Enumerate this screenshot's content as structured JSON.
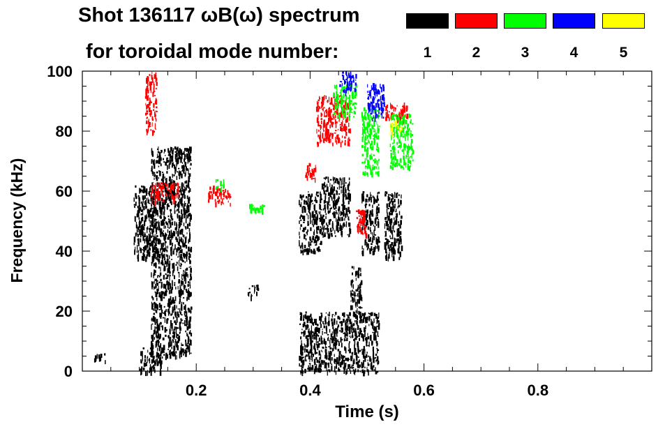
{
  "header": {
    "title_line1": "Shot 136117 ωB(ω) spectrum",
    "title_line2": "for toroidal mode number:"
  },
  "legend": [
    {
      "mode": "1",
      "color": "#000000"
    },
    {
      "mode": "2",
      "color": "#ff0000"
    },
    {
      "mode": "3",
      "color": "#00ff00"
    },
    {
      "mode": "4",
      "color": "#0000ff"
    },
    {
      "mode": "5",
      "color": "#ffff00"
    }
  ],
  "chart_data": {
    "type": "heatmap",
    "xlabel": "Time (s)",
    "ylabel": "Frequency (kHz)",
    "xlim": [
      0.0,
      1.0
    ],
    "ylim": [
      0,
      100
    ],
    "xticks": [
      0.2,
      0.4,
      0.6,
      0.8
    ],
    "xtick_labels": [
      "0.2",
      "0.4",
      "0.6",
      "0.8"
    ],
    "yticks": [
      0,
      20,
      40,
      60,
      80,
      100
    ],
    "ytick_labels": [
      "0",
      "20",
      "40",
      "60",
      "80",
      "100"
    ],
    "grid": false,
    "series": [
      {
        "name": "1",
        "color": "#000000",
        "regions": [
          {
            "t": [
              0.09,
              0.13
            ],
            "f": [
              38,
              62
            ]
          },
          {
            "t": [
              0.12,
              0.19
            ],
            "f": [
              5,
              75
            ]
          },
          {
            "t": [
              0.1,
              0.14
            ],
            "f": [
              0,
              8
            ]
          },
          {
            "t": [
              0.29,
              0.31
            ],
            "f": [
              25,
              29
            ]
          },
          {
            "t": [
              0.38,
              0.42
            ],
            "f": [
              40,
              60
            ]
          },
          {
            "t": [
              0.42,
              0.47
            ],
            "f": [
              45,
              65
            ]
          },
          {
            "t": [
              0.47,
              0.49
            ],
            "f": [
              20,
              35
            ]
          },
          {
            "t": [
              0.49,
              0.52
            ],
            "f": [
              40,
              60
            ]
          },
          {
            "t": [
              0.53,
              0.56
            ],
            "f": [
              38,
              60
            ]
          },
          {
            "t": [
              0.38,
              0.52
            ],
            "f": [
              0,
              20
            ]
          },
          {
            "t": [
              0.02,
              0.04
            ],
            "f": [
              3,
              6
            ]
          }
        ]
      },
      {
        "name": "2",
        "color": "#ff0000",
        "regions": [
          {
            "t": [
              0.11,
              0.13
            ],
            "f": [
              80,
              100
            ]
          },
          {
            "t": [
              0.12,
              0.17
            ],
            "f": [
              57,
              63
            ]
          },
          {
            "t": [
              0.22,
              0.24
            ],
            "f": [
              56,
              62
            ]
          },
          {
            "t": [
              0.24,
              0.26
            ],
            "f": [
              56,
              61
            ]
          },
          {
            "t": [
              0.41,
              0.47
            ],
            "f": [
              76,
              92
            ]
          },
          {
            "t": [
              0.39,
              0.41
            ],
            "f": [
              64,
              70
            ]
          },
          {
            "t": [
              0.48,
              0.5
            ],
            "f": [
              46,
              54
            ]
          },
          {
            "t": [
              0.53,
              0.57
            ],
            "f": [
              84,
              90
            ]
          }
        ]
      },
      {
        "name": "3",
        "color": "#00ff00",
        "regions": [
          {
            "t": [
              0.44,
              0.48
            ],
            "f": [
              85,
              96
            ]
          },
          {
            "t": [
              0.49,
              0.52
            ],
            "f": [
              66,
              88
            ]
          },
          {
            "t": [
              0.54,
              0.58
            ],
            "f": [
              68,
              86
            ]
          },
          {
            "t": [
              0.23,
              0.25
            ],
            "f": [
              61,
              64
            ]
          },
          {
            "t": [
              0.29,
              0.32
            ],
            "f": [
              53,
              56
            ]
          }
        ]
      },
      {
        "name": "4",
        "color": "#0000ff",
        "regions": [
          {
            "t": [
              0.45,
              0.48
            ],
            "f": [
              93,
              100
            ]
          },
          {
            "t": [
              0.5,
              0.53
            ],
            "f": [
              84,
              96
            ]
          }
        ]
      },
      {
        "name": "5",
        "color": "#ffff00",
        "regions": [
          {
            "t": [
              0.54,
              0.56
            ],
            "f": [
              80,
              84
            ]
          }
        ]
      }
    ]
  }
}
